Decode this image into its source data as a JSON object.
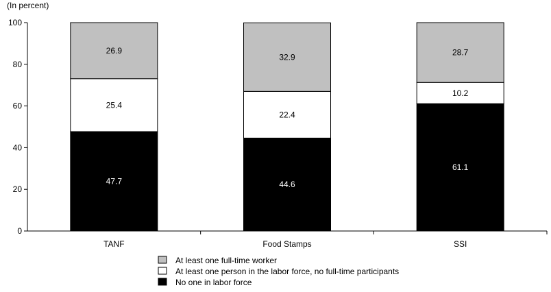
{
  "chart_data": {
    "type": "bar",
    "stacked": true,
    "y_unit_label": "(In percent)",
    "xlabel": "",
    "ylabel": "",
    "ylim": [
      0,
      100
    ],
    "yticks": [
      0,
      20,
      40,
      60,
      80,
      100
    ],
    "grid": false,
    "legend_position": "bottom",
    "categories": [
      "TANF",
      "Food Stamps",
      "SSI"
    ],
    "series": [
      {
        "name": "No one in labor force",
        "color": "#000000",
        "label_color": "#ffffff",
        "values": [
          47.7,
          44.6,
          61.1
        ]
      },
      {
        "name": "At least one person in the labor force, no full-time participants",
        "color": "#ffffff",
        "label_color": "#000000",
        "values": [
          25.4,
          22.4,
          10.2
        ]
      },
      {
        "name": "At least one full-time worker",
        "color": "#c0c0c0",
        "label_color": "#000000",
        "values": [
          26.9,
          32.9,
          28.7
        ]
      }
    ],
    "legend_order": [
      2,
      1,
      0
    ]
  }
}
